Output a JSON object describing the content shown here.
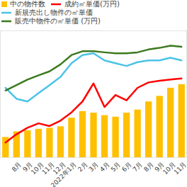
{
  "chart_data": {
    "type": "bar",
    "categories": [
      null,
      "8月",
      "9月",
      "10月",
      "11月",
      "12月",
      "2022年1月",
      "2月",
      "3月",
      "4月",
      "5月",
      "6月",
      "7月",
      "8月",
      "9月",
      "10月",
      "11月"
    ],
    "series": [
      {
        "name": "中の物件数",
        "type": "bar",
        "color": "#FFC000",
        "values": [
          40,
          51,
          53,
          56,
          58,
          61,
          78,
          91,
          88,
          83,
          80,
          88,
          94,
          110,
          121,
          137,
          144
        ]
      },
      {
        "name": "成約㎡単価(万円)",
        "type": "line",
        "axis": "y2",
        "color": "#FF0000",
        "values": [
          49.3,
          54.5,
          58.6,
          61.4,
          59.7,
          63.1,
          68.3,
          75.2,
          86.6,
          71.7,
          79.3,
          75.9,
          83.8,
          87.2,
          88.3,
          89.0,
          89.7
        ]
      },
      {
        "name": "新規売出し物件の㎡単価",
        "type": "line",
        "axis": "y2",
        "color": "#4BC3E6",
        "values": [
          83.8,
          76.9,
          75.2,
          80.4,
          85.5,
          90.7,
          99.3,
          104.5,
          105.6,
          101.1,
          99.3,
          97.6,
          100.0,
          101.1,
          101.1,
          102.8,
          101.1
        ]
      },
      {
        "name": "販売中物件の㎡単価 (万円)",
        "type": "line",
        "axis": "y2",
        "color": "#3B7A1E",
        "values": [
          82.1,
          85.5,
          89.0,
          91.7,
          94.2,
          98.6,
          104.5,
          106.9,
          106.9,
          106.2,
          105.6,
          105.6,
          106.2,
          108.0,
          109.0,
          110.4,
          109.7
        ]
      }
    ],
    "ylim": [
      0,
      250
    ],
    "y2lim": [
      40,
      120
    ],
    "legend": "top",
    "tick_labels": "x",
    "grid": false
  }
}
